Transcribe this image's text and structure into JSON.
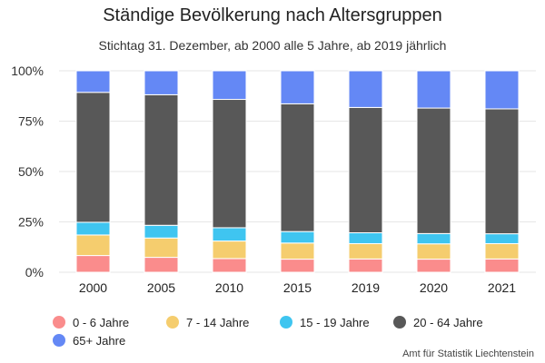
{
  "chart_data": {
    "type": "bar",
    "stacked": true,
    "normalized": true,
    "title": "Ständige Bevölkerung nach Altersgruppen",
    "subtitle": "Stichtag 31. Dezember, ab 2000 alle 5 Jahre, ab 2019 jährlich",
    "categories": [
      "2000",
      "2005",
      "2010",
      "2015",
      "2019",
      "2020",
      "2021"
    ],
    "series": [
      {
        "name": "0 - 6 Jahre",
        "color": "#fa8c8c",
        "values": [
          8.3,
          7.4,
          6.8,
          6.5,
          6.6,
          6.5,
          6.6
        ]
      },
      {
        "name": "7 - 14 Jahre",
        "color": "#f5cd6e",
        "values": [
          10.2,
          9.6,
          8.7,
          8.0,
          7.6,
          7.6,
          7.6
        ]
      },
      {
        "name": "15 - 19 Jahre",
        "color": "#3fc5f0",
        "values": [
          6.3,
          6.3,
          6.6,
          5.7,
          5.4,
          5.1,
          4.9
        ]
      },
      {
        "name": "20 - 64 Jahre",
        "color": "#585858",
        "values": [
          64.5,
          64.8,
          63.7,
          63.4,
          62.2,
          62.3,
          62.0
        ]
      },
      {
        "name": "65+ Jahre",
        "color": "#6488f5",
        "values": [
          10.7,
          11.9,
          14.2,
          16.4,
          18.2,
          18.5,
          18.9
        ]
      }
    ],
    "yticks": [
      "0%",
      "25%",
      "50%",
      "75%",
      "100%"
    ],
    "ylim": [
      0,
      100
    ],
    "grid": true,
    "legend_position": "bottom-left",
    "source": "Amt für Statistik Liechtenstein"
  }
}
